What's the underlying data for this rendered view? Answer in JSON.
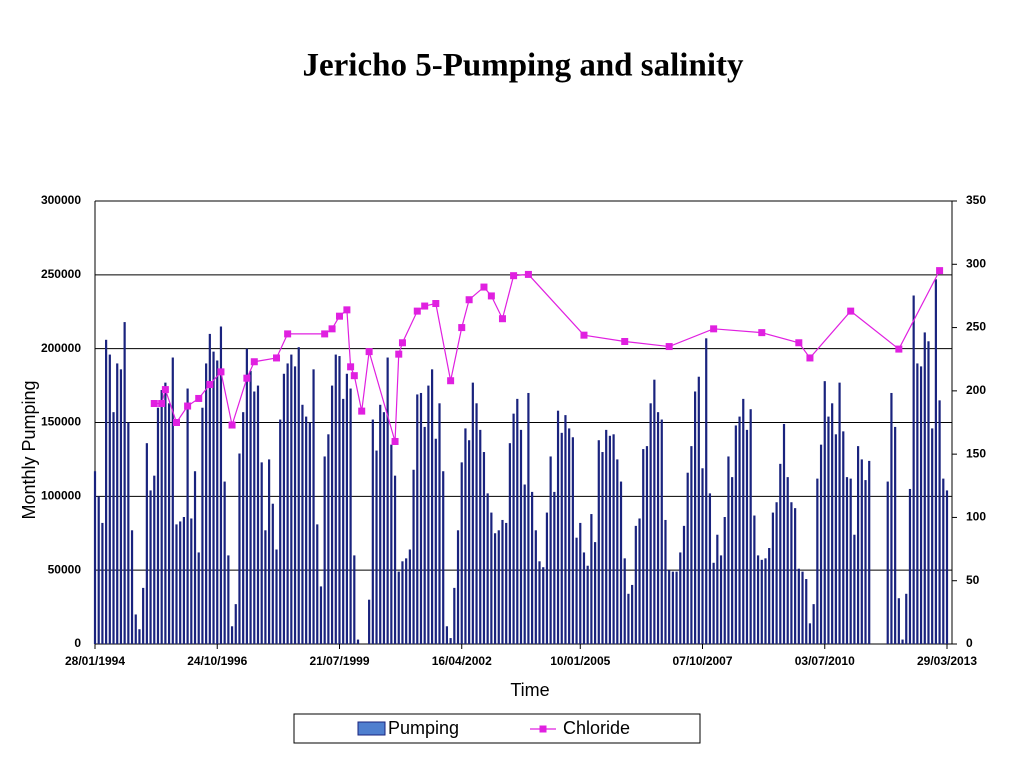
{
  "chart_data": {
    "type": "bar_line",
    "title": "Jericho 5-Pumping and salinity",
    "x_label": "Time",
    "y_label": "Monthly Pumping",
    "categories": [
      "28/01/1994",
      null,
      null,
      null,
      null,
      null,
      null,
      null,
      null,
      null,
      null,
      null,
      null,
      null,
      null,
      null,
      null,
      null,
      null,
      null,
      null,
      null,
      null,
      null,
      null,
      null,
      null,
      null,
      null,
      null,
      null,
      null,
      null,
      "24/10/1996",
      null,
      null,
      null,
      null,
      null,
      null,
      null,
      null,
      null,
      null,
      null,
      null,
      null,
      null,
      null,
      null,
      null,
      null,
      null,
      null,
      null,
      null,
      null,
      null,
      null,
      null,
      null,
      null,
      null,
      null,
      null,
      null,
      "21/07/1999",
      null,
      null,
      null,
      null,
      null,
      null,
      null,
      null,
      null,
      null,
      null,
      null,
      null,
      null,
      null,
      null,
      null,
      null,
      null,
      null,
      null,
      null,
      null,
      null,
      null,
      null,
      null,
      null,
      null,
      null,
      null,
      null,
      "16/04/2002",
      null,
      null,
      null,
      null,
      null,
      null,
      null,
      null,
      null,
      null,
      null,
      null,
      null,
      null,
      null,
      null,
      null,
      null,
      null,
      null,
      null,
      null,
      null,
      null,
      null,
      null,
      null,
      null,
      null,
      null,
      null,
      "10/01/2005",
      null,
      null,
      null,
      null,
      null,
      null,
      null,
      null,
      null,
      null,
      null,
      null,
      null,
      null,
      null,
      null,
      null,
      null,
      null,
      null,
      null,
      null,
      null,
      null,
      null,
      null,
      null,
      null,
      null,
      null,
      null,
      null,
      "07/10/2007",
      null,
      null,
      null,
      null,
      null,
      null,
      null,
      null,
      null,
      null,
      null,
      null,
      null,
      null,
      null,
      null,
      null,
      null,
      null,
      null,
      null,
      null,
      null,
      null,
      null,
      null,
      null,
      null,
      null,
      null,
      null,
      null,
      "03/07/2010",
      null,
      null,
      null,
      null,
      null,
      null,
      null,
      null,
      null,
      null,
      null,
      null,
      null,
      null,
      null,
      null,
      null,
      null,
      null,
      null,
      null,
      null,
      null,
      null,
      null,
      null,
      null,
      null,
      null,
      null,
      null,
      null,
      "29/03/2013"
    ],
    "series": [
      {
        "name": "Pumping",
        "color": "#1a237e",
        "legend_color": "#4f7fcf",
        "values": [
          117000,
          100000,
          82000,
          206000,
          196000,
          157000,
          190000,
          186000,
          218000,
          150000,
          77000,
          20000,
          10000,
          38000,
          136000,
          104000,
          114000,
          160000,
          172000,
          177000,
          163000,
          194000,
          81000,
          83000,
          86000,
          173000,
          85000,
          117000,
          62000,
          160000,
          190000,
          210000,
          198000,
          192000,
          215000,
          110000,
          60000,
          12000,
          27000,
          129000,
          157000,
          200000,
          185000,
          171000,
          175000,
          123000,
          77000,
          125000,
          95000,
          64000,
          152000,
          183000,
          190000,
          196000,
          188000,
          201000,
          162000,
          154000,
          150000,
          186000,
          81000,
          39000,
          127000,
          142000,
          175000,
          196000,
          195000,
          166000,
          183000,
          173000,
          60000,
          3000,
          0,
          0,
          30000,
          152000,
          131000,
          162000,
          157000,
          194000,
          135000,
          114000,
          49000,
          56000,
          58000,
          64000,
          118000,
          169000,
          170000,
          147000,
          175000,
          186000,
          139000,
          163000,
          117000,
          12000,
          4000,
          38000,
          77000,
          123000,
          146000,
          138000,
          177000,
          163000,
          145000,
          130000,
          102000,
          89000,
          75000,
          77000,
          84000,
          82000,
          136000,
          156000,
          166000,
          145000,
          108000,
          170000,
          103000,
          77000,
          56000,
          52000,
          89000,
          127000,
          103000,
          158000,
          143000,
          155000,
          146000,
          140000,
          72000,
          82000,
          62000,
          53000,
          88000,
          69000,
          138000,
          130000,
          145000,
          141000,
          142000,
          125000,
          110000,
          58000,
          34000,
          40000,
          80000,
          85000,
          132000,
          134000,
          163000,
          179000,
          157000,
          152000,
          84000,
          50000,
          49000,
          49000,
          62000,
          80000,
          116000,
          134000,
          171000,
          181000,
          119000,
          207000,
          102000,
          55000,
          74000,
          60000,
          86000,
          127000,
          113000,
          148000,
          154000,
          166000,
          145000,
          159000,
          87000,
          60000,
          57000,
          58000,
          65000,
          89000,
          96000,
          122000,
          149000,
          113000,
          96000,
          92000,
          51000,
          49000,
          44000,
          14000,
          27000,
          112000,
          135000,
          178000,
          154000,
          163000,
          142000,
          177000,
          144000,
          113000,
          112000,
          74000,
          134000,
          125000,
          111000,
          124000,
          0,
          0,
          0,
          0,
          110000,
          170000,
          147000,
          31000,
          3000,
          34000,
          105000,
          236000,
          190000,
          188000,
          211000,
          205000,
          146000,
          247000,
          165000,
          112000,
          104000
        ]
      },
      {
        "name": "Chloride",
        "color": "#e020e0",
        "axis": "y2",
        "x": [
          16,
          18,
          19,
          22,
          25,
          28,
          31,
          34,
          37,
          41,
          43,
          49,
          52,
          62,
          64,
          66,
          68,
          69,
          70,
          72,
          74,
          81,
          82,
          83,
          87,
          89,
          92,
          96,
          99,
          101,
          105,
          107,
          110,
          113,
          117,
          132,
          143,
          155,
          167,
          180,
          190,
          193,
          204,
          217,
          228
        ],
        "values": [
          190,
          190,
          201,
          175,
          188,
          194,
          205,
          215,
          173,
          210,
          223,
          226,
          245,
          245,
          249,
          259,
          264,
          219,
          212,
          184,
          231,
          160,
          229,
          238,
          263,
          267,
          269,
          208,
          250,
          272,
          282,
          275,
          257,
          291,
          292,
          244,
          239,
          235,
          249,
          246,
          238,
          226,
          263,
          233,
          295
        ]
      }
    ],
    "ylim": [
      0,
      300000
    ],
    "yticks": [
      0,
      50000,
      100000,
      150000,
      200000,
      250000,
      300000
    ],
    "y2lim": [
      0,
      350
    ],
    "y2ticks": [
      0,
      50,
      100,
      150,
      200,
      250,
      300,
      350
    ],
    "grid": true,
    "legend": "bottom"
  }
}
